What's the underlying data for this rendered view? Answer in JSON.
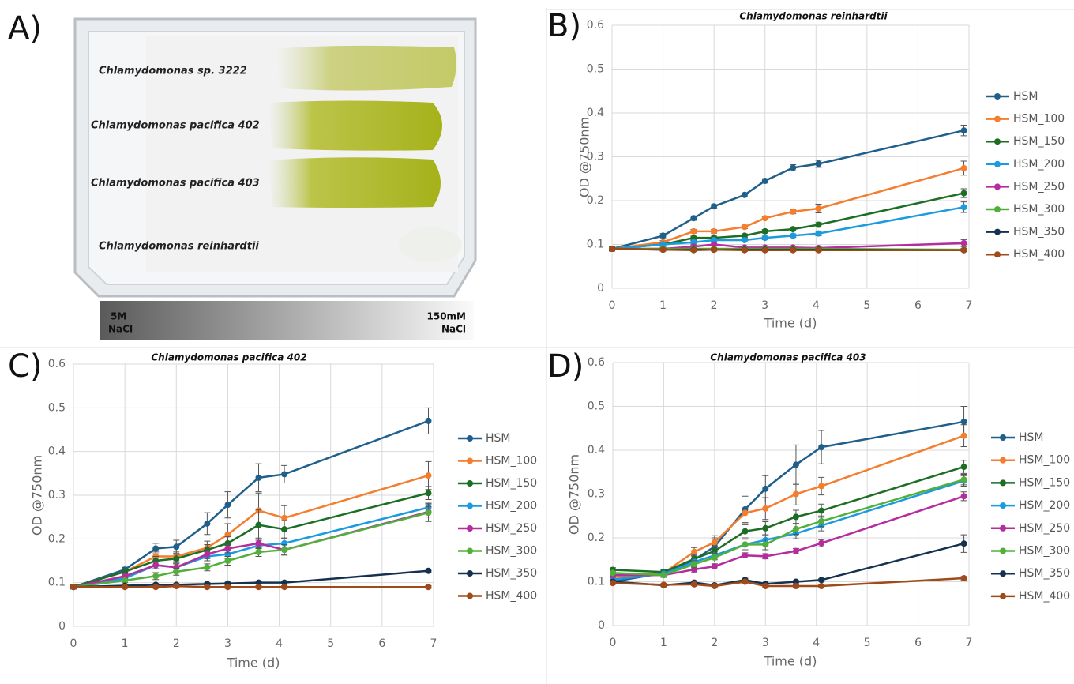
{
  "panel_a": {
    "label": "A)",
    "strains": [
      "Chlamydomonas sp. 3222",
      "Chlamydomonas pacifica 402",
      "Chlamydomonas pacifica 403",
      "Chlamydomonas reinhardtii"
    ],
    "gradient_left": [
      "5M",
      "NaCl"
    ],
    "gradient_right": [
      "150mM",
      "NaCl"
    ]
  },
  "chart_data": [
    {
      "type": "line",
      "panel_label": "B)",
      "title": "Chlamydomonas reinhardtii",
      "x_label": "Time (d)",
      "y_label": "OD @750nm",
      "x": [
        0,
        1,
        1.6,
        2,
        2.6,
        3,
        3.55,
        4.05,
        6.9
      ],
      "xlim": [
        0,
        7
      ],
      "ylim": [
        0,
        0.6
      ],
      "xticks": [
        0,
        1,
        2,
        3,
        4,
        5,
        6,
        7
      ],
      "yticks": [
        0,
        0.1,
        0.2,
        0.3,
        0.4,
        0.5,
        0.6
      ],
      "grid": true,
      "series": [
        {
          "name": "HSM",
          "color": "#1f5f8b",
          "values": [
            0.09,
            0.12,
            0.16,
            0.187,
            0.213,
            0.245,
            0.275,
            0.284,
            0.36
          ],
          "errors": [
            0.005,
            0.005,
            0.005,
            0.004,
            0.004,
            0.005,
            0.007,
            0.008,
            0.012
          ]
        },
        {
          "name": "HSM_100",
          "color": "#f47d2e",
          "values": [
            0.09,
            0.105,
            0.13,
            0.13,
            0.14,
            0.16,
            0.175,
            0.182,
            0.274
          ],
          "errors": [
            0.005,
            0.004,
            0.004,
            0.004,
            0.004,
            0.004,
            0.005,
            0.01,
            0.016
          ]
        },
        {
          "name": "HSM_150",
          "color": "#1b6e23",
          "values": [
            0.09,
            0.1,
            0.115,
            0.115,
            0.12,
            0.13,
            0.135,
            0.145,
            0.217
          ],
          "errors": [
            0.005,
            0.004,
            0.004,
            0.004,
            0.004,
            0.004,
            0.004,
            0.005,
            0.01
          ]
        },
        {
          "name": "HSM_200",
          "color": "#1a9be0",
          "values": [
            0.09,
            0.1,
            0.105,
            0.11,
            0.11,
            0.115,
            0.12,
            0.125,
            0.185
          ],
          "errors": [
            0.005,
            0.004,
            0.004,
            0.004,
            0.004,
            0.004,
            0.004,
            0.005,
            0.012
          ]
        },
        {
          "name": "HSM_250",
          "color": "#b42c9e",
          "values": [
            0.09,
            0.09,
            0.095,
            0.1,
            0.093,
            0.093,
            0.093,
            0.092,
            0.103
          ],
          "errors": [
            0.005,
            0.003,
            0.003,
            0.003,
            0.003,
            0.003,
            0.003,
            0.003,
            0.008
          ]
        },
        {
          "name": "HSM_300",
          "color": "#52b03a",
          "values": [
            0.09,
            0.09,
            0.09,
            0.09,
            0.09,
            0.09,
            0.09,
            0.09,
            0.088
          ],
          "errors": [
            0.005,
            0.003,
            0.003,
            0.003,
            0.003,
            0.003,
            0.003,
            0.003,
            0.003
          ]
        },
        {
          "name": "HSM_350",
          "color": "#14324f",
          "values": [
            0.09,
            0.088,
            0.088,
            0.088,
            0.088,
            0.088,
            0.088,
            0.088,
            0.087
          ],
          "errors": [
            0.005,
            0.003,
            0.003,
            0.003,
            0.003,
            0.003,
            0.003,
            0.003,
            0.003
          ]
        },
        {
          "name": "HSM_400",
          "color": "#a04a1a",
          "values": [
            0.09,
            0.088,
            0.087,
            0.088,
            0.087,
            0.087,
            0.087,
            0.087,
            0.087
          ],
          "errors": [
            0.005,
            0.003,
            0.003,
            0.003,
            0.003,
            0.003,
            0.003,
            0.003,
            0.003
          ]
        }
      ]
    },
    {
      "type": "line",
      "panel_label": "C)",
      "title": "Chlamydomonas pacifica 402",
      "x_label": "Time (d)",
      "y_label": "OD @750nm",
      "x": [
        0,
        1,
        1.6,
        2,
        2.6,
        3,
        3.6,
        4.1,
        6.9
      ],
      "xlim": [
        0,
        7
      ],
      "ylim": [
        0,
        0.6
      ],
      "xticks": [
        0,
        1,
        2,
        3,
        4,
        5,
        6,
        7
      ],
      "yticks": [
        0,
        0.1,
        0.2,
        0.3,
        0.4,
        0.5,
        0.6
      ],
      "grid": true,
      "series": [
        {
          "name": "HSM",
          "color": "#1f5f8b",
          "values": [
            0.09,
            0.13,
            0.178,
            0.182,
            0.235,
            0.278,
            0.34,
            0.348,
            0.47
          ],
          "errors": [
            0.005,
            0.005,
            0.012,
            0.015,
            0.025,
            0.03,
            0.032,
            0.02,
            0.03
          ]
        },
        {
          "name": "HSM_100",
          "color": "#f47d2e",
          "values": [
            0.09,
            0.125,
            0.16,
            0.16,
            0.18,
            0.21,
            0.265,
            0.248,
            0.345
          ],
          "errors": [
            0.005,
            0.005,
            0.01,
            0.01,
            0.015,
            0.025,
            0.04,
            0.028,
            0.032
          ]
        },
        {
          "name": "HSM_150",
          "color": "#1b6e23",
          "values": [
            0.09,
            0.125,
            0.15,
            0.155,
            0.175,
            0.19,
            0.232,
            0.222,
            0.305
          ],
          "errors": [
            0.005,
            0.005,
            0.01,
            0.01,
            0.012,
            0.015,
            0.035,
            0.02,
            0.015
          ]
        },
        {
          "name": "HSM_200",
          "color": "#1a9be0",
          "values": [
            0.09,
            0.11,
            0.14,
            0.135,
            0.16,
            0.165,
            0.185,
            0.19,
            0.272
          ],
          "errors": [
            0.005,
            0.005,
            0.008,
            0.008,
            0.01,
            0.01,
            0.012,
            0.012,
            0.01
          ]
        },
        {
          "name": "HSM_250",
          "color": "#b42c9e",
          "values": [
            0.09,
            0.115,
            0.14,
            0.135,
            0.165,
            0.178,
            0.19,
            0.175,
            0.262
          ],
          "errors": [
            0.005,
            0.005,
            0.008,
            0.008,
            0.01,
            0.01,
            0.012,
            0.012,
            0.012
          ]
        },
        {
          "name": "HSM_300",
          "color": "#52b03a",
          "values": [
            0.09,
            0.105,
            0.115,
            0.125,
            0.135,
            0.15,
            0.17,
            0.175,
            0.26
          ],
          "errors": [
            0.005,
            0.005,
            0.008,
            0.008,
            0.008,
            0.01,
            0.01,
            0.012,
            0.02
          ]
        },
        {
          "name": "HSM_350",
          "color": "#14324f",
          "values": [
            0.09,
            0.093,
            0.095,
            0.095,
            0.097,
            0.098,
            0.1,
            0.1,
            0.127
          ],
          "errors": [
            0.003,
            0.003,
            0.003,
            0.003,
            0.003,
            0.003,
            0.003,
            0.003,
            0.004
          ]
        },
        {
          "name": "HSM_400",
          "color": "#a04a1a",
          "values": [
            0.09,
            0.09,
            0.09,
            0.092,
            0.09,
            0.09,
            0.09,
            0.09,
            0.09
          ],
          "errors": [
            0.003,
            0.003,
            0.003,
            0.003,
            0.003,
            0.003,
            0.003,
            0.003,
            0.003
          ]
        }
      ]
    },
    {
      "type": "line",
      "panel_label": "D)",
      "title": "Chlamydomonas pacifica 403",
      "x_label": "Time (d)",
      "y_label": "OD @750nm",
      "x": [
        0,
        1,
        1.6,
        2,
        2.6,
        3,
        3.6,
        4.1,
        6.9
      ],
      "xlim": [
        0,
        7
      ],
      "ylim": [
        0,
        0.6
      ],
      "xticks": [
        0,
        1,
        2,
        3,
        4,
        5,
        6,
        7
      ],
      "yticks": [
        0,
        0.1,
        0.2,
        0.3,
        0.4,
        0.5,
        0.6
      ],
      "grid": true,
      "series": [
        {
          "name": "HSM",
          "color": "#1f5f8b",
          "values": [
            0.1,
            0.12,
            0.15,
            0.18,
            0.265,
            0.312,
            0.367,
            0.407,
            0.465
          ],
          "errors": [
            0.005,
            0.005,
            0.01,
            0.02,
            0.03,
            0.03,
            0.045,
            0.038,
            0.035
          ]
        },
        {
          "name": "HSM_100",
          "color": "#f47d2e",
          "values": [
            0.11,
            0.12,
            0.168,
            0.19,
            0.257,
            0.267,
            0.3,
            0.318,
            0.433
          ],
          "errors": [
            0.005,
            0.005,
            0.01,
            0.015,
            0.025,
            0.025,
            0.025,
            0.02,
            0.025
          ]
        },
        {
          "name": "HSM_150",
          "color": "#1b6e23",
          "values": [
            0.127,
            0.122,
            0.152,
            0.17,
            0.215,
            0.222,
            0.248,
            0.262,
            0.362
          ],
          "errors": [
            0.005,
            0.005,
            0.01,
            0.012,
            0.015,
            0.015,
            0.015,
            0.015,
            0.015
          ]
        },
        {
          "name": "HSM_200",
          "color": "#1a9be0",
          "values": [
            0.105,
            0.118,
            0.145,
            0.16,
            0.185,
            0.195,
            0.21,
            0.228,
            0.33
          ],
          "errors": [
            0.005,
            0.005,
            0.008,
            0.01,
            0.012,
            0.012,
            0.012,
            0.012,
            0.012
          ]
        },
        {
          "name": "HSM_250",
          "color": "#b42c9e",
          "values": [
            0.115,
            0.115,
            0.128,
            0.135,
            0.16,
            0.158,
            0.17,
            0.188,
            0.295
          ],
          "errors": [
            0.005,
            0.005,
            0.006,
            0.006,
            0.006,
            0.006,
            0.006,
            0.008,
            0.01
          ]
        },
        {
          "name": "HSM_300",
          "color": "#52b03a",
          "values": [
            0.12,
            0.115,
            0.14,
            0.155,
            0.185,
            0.185,
            0.22,
            0.238,
            0.333
          ],
          "errors": [
            0.005,
            0.005,
            0.008,
            0.01,
            0.012,
            0.012,
            0.012,
            0.012,
            0.012
          ]
        },
        {
          "name": "HSM_350",
          "color": "#14324f",
          "values": [
            0.1,
            0.092,
            0.098,
            0.092,
            0.104,
            0.095,
            0.1,
            0.104,
            0.187
          ],
          "errors": [
            0.004,
            0.003,
            0.003,
            0.003,
            0.004,
            0.003,
            0.003,
            0.003,
            0.02
          ]
        },
        {
          "name": "HSM_400",
          "color": "#a04a1a",
          "values": [
            0.097,
            0.093,
            0.094,
            0.09,
            0.1,
            0.09,
            0.09,
            0.09,
            0.108
          ],
          "errors": [
            0.003,
            0.003,
            0.003,
            0.003,
            0.003,
            0.003,
            0.003,
            0.003,
            0.004
          ]
        }
      ]
    }
  ]
}
